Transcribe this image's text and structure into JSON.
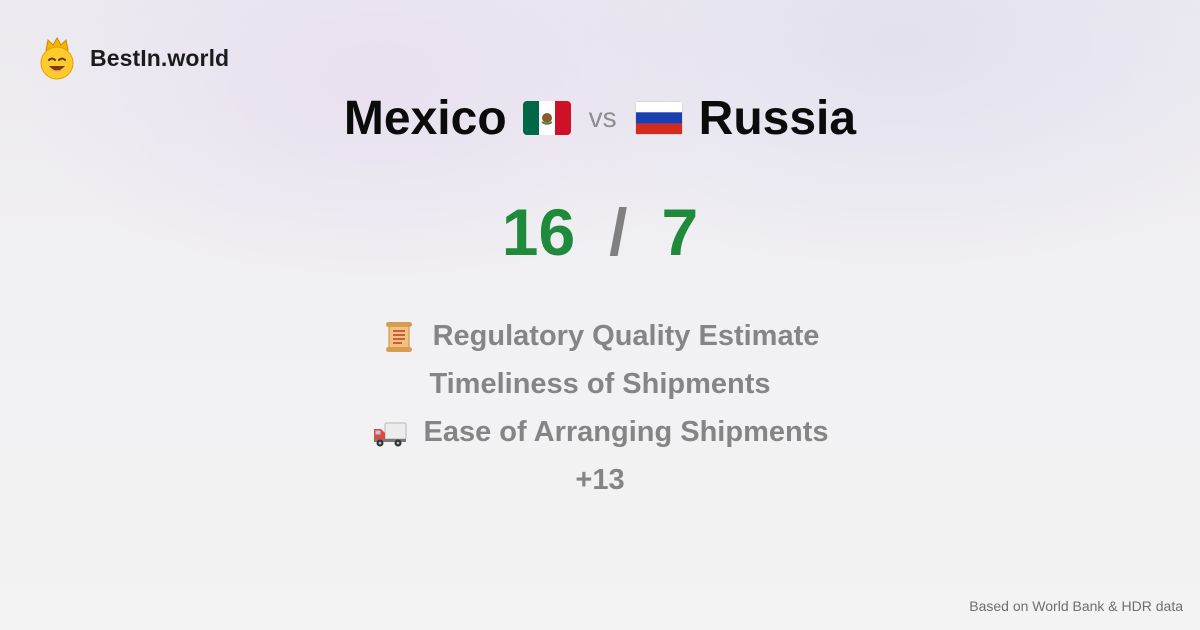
{
  "brand": {
    "name": "BestIn.world",
    "icon": "crowned-smiley-icon"
  },
  "comparison": {
    "left": {
      "name": "Mexico",
      "flag": "mexico-flag-icon"
    },
    "separator": "vs",
    "right": {
      "name": "Russia",
      "flag": "russia-flag-icon"
    }
  },
  "score": {
    "left": "16",
    "separator": "/",
    "right": "7",
    "color": "#1f8a3b"
  },
  "metrics": [
    {
      "label": "Regulatory Quality Estimate",
      "icon": "scroll-icon"
    },
    {
      "label": "Timeliness of Shipments",
      "icon": ""
    },
    {
      "label": "Ease of Arranging Shipments",
      "icon": "delivery-truck-icon"
    }
  ],
  "more": "+13",
  "footer": "Based on World Bank & HDR data"
}
